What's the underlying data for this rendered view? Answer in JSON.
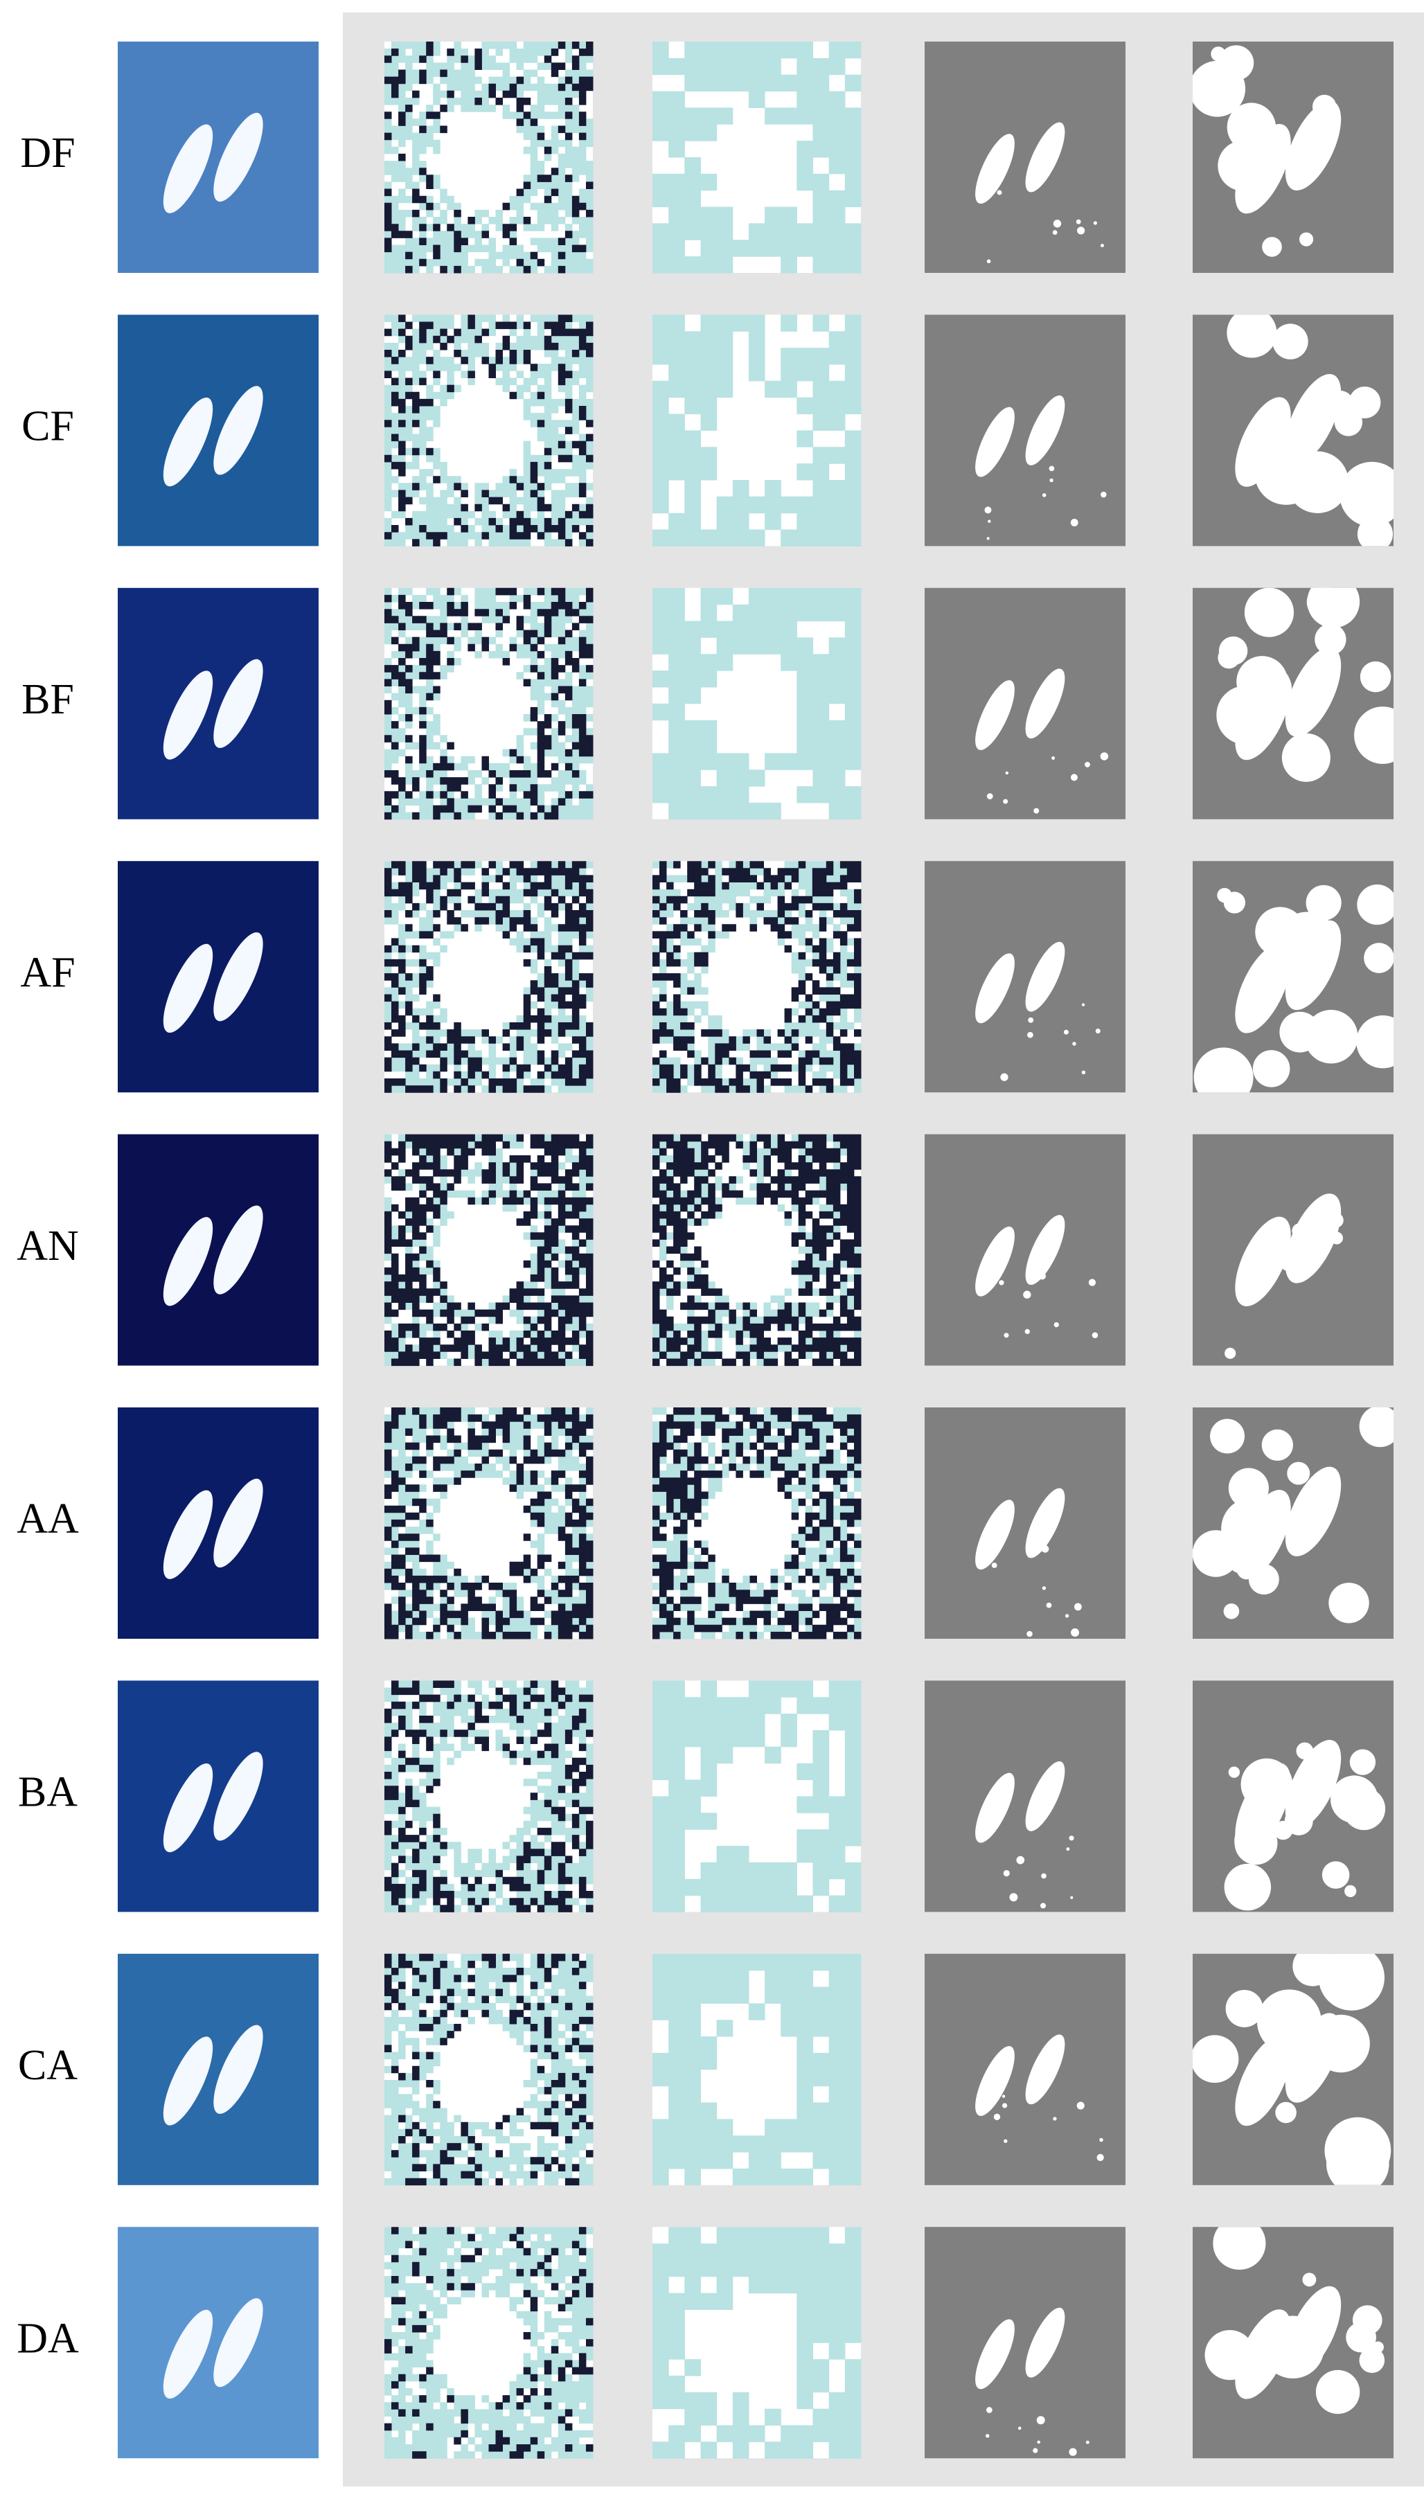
{
  "rows": [
    {
      "label": "DF"
    },
    {
      "label": "CF"
    },
    {
      "label": "BF"
    },
    {
      "label": "AF"
    },
    {
      "label": "AN"
    },
    {
      "label": "AA"
    },
    {
      "label": "BA"
    },
    {
      "label": "CA"
    },
    {
      "label": "DA"
    }
  ]
}
